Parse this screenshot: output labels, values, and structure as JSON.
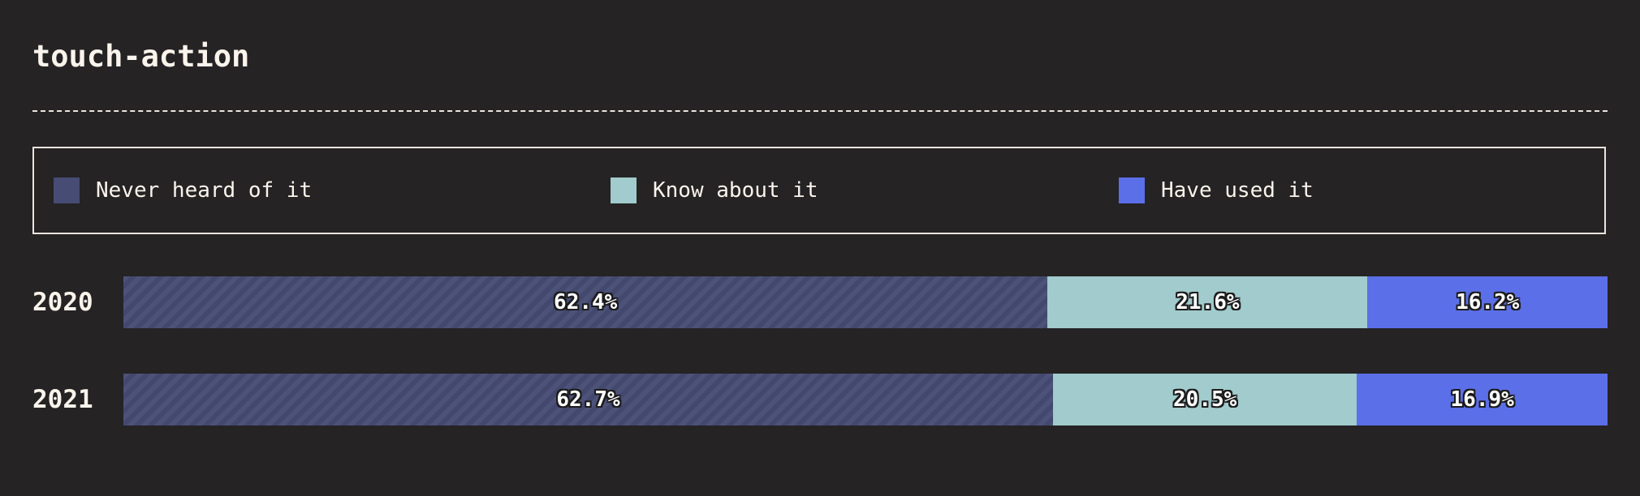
{
  "title": "touch-action",
  "legend": [
    {
      "label": "Never heard of it",
      "color": "#474c74"
    },
    {
      "label": "Know about it",
      "color": "#a1cbcc"
    },
    {
      "label": "Have used it",
      "color": "#5b6fe8"
    }
  ],
  "chart_data": {
    "type": "bar",
    "orientation": "horizontal",
    "stacked": true,
    "normalized": true,
    "categories": [
      "2020",
      "2021"
    ],
    "series": [
      {
        "name": "Never heard of it",
        "values": [
          62.4,
          62.7
        ],
        "labels": [
          "62.4%",
          "62.7%"
        ]
      },
      {
        "name": "Know about it",
        "values": [
          21.6,
          20.5
        ],
        "labels": [
          "21.6%",
          "20.5%"
        ]
      },
      {
        "name": "Have used it",
        "values": [
          16.2,
          16.9
        ],
        "labels": [
          "16.2%",
          "16.9%"
        ]
      }
    ],
    "title": "touch-action",
    "xlim": [
      0,
      100
    ],
    "legend_position": "top"
  }
}
